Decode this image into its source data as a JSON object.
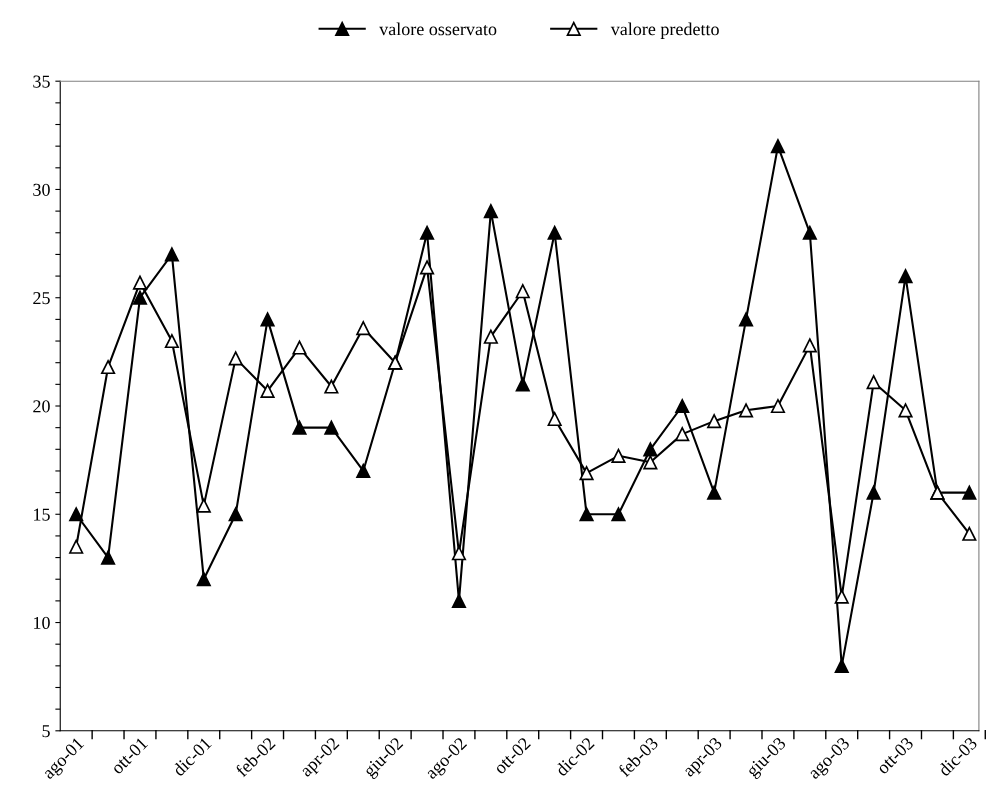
{
  "chart_data": {
    "type": "line",
    "categories": [
      "ago-01",
      null,
      "ott-01",
      null,
      "dic-01",
      null,
      "feb-02",
      null,
      "apr-02",
      null,
      "giu-02",
      null,
      "ago-02",
      null,
      "ott-02",
      null,
      "dic-02",
      null,
      "feb-03",
      null,
      "apr-03",
      null,
      "giu-03",
      null,
      "ago-03",
      null,
      "ott-03",
      null,
      "dic-03"
    ],
    "series": [
      {
        "name": "valore osservato",
        "color": "#000000",
        "marker": "triangle",
        "values": [
          15,
          13,
          25,
          27,
          12,
          15,
          24,
          19,
          19,
          17,
          22,
          28,
          11,
          29,
          21,
          28,
          15,
          15,
          18,
          20,
          16,
          24,
          32,
          28,
          8,
          16,
          26,
          16,
          16
        ]
      },
      {
        "name": "valore predetto",
        "color": "#000000",
        "marker": "triangle",
        "values": [
          13.5,
          21.8,
          25.7,
          23,
          15.4,
          22.2,
          20.7,
          22.7,
          20.9,
          23.6,
          22,
          26.4,
          13.2,
          23.2,
          25.3,
          19.4,
          16.9,
          17.7,
          17.4,
          18.7,
          19.3,
          19.8,
          20,
          22.8,
          11.2,
          21.1,
          19.8,
          16,
          14.1
        ]
      }
    ],
    "ylim": [
      5,
      35
    ],
    "yticks": [
      5,
      {
        "value": 6,
        "label": null
      },
      {
        "value": 7,
        "label": null
      },
      {
        "value": 8,
        "label": null
      },
      {
        "value": 9,
        "label": null
      },
      10,
      {
        "value": 11,
        "label": null
      },
      {
        "value": 12,
        "label": null
      },
      {
        "value": 13,
        "label": null
      },
      {
        "value": 14,
        "label": null
      },
      15,
      {
        "value": 16,
        "label": null
      },
      {
        "value": 17,
        "label": null
      },
      {
        "value": 18,
        "label": null
      },
      {
        "value": 19,
        "label": null
      },
      20,
      {
        "value": 21,
        "label": null
      },
      {
        "value": 22,
        "label": null
      },
      {
        "value": 23,
        "label": null
      },
      {
        "value": 24,
        "label": null
      },
      25,
      {
        "value": 26,
        "label": null
      },
      {
        "value": 27,
        "label": null
      },
      {
        "value": 28,
        "label": null
      },
      {
        "value": 29,
        "label": null
      },
      30,
      {
        "value": 31,
        "label": null
      },
      {
        "value": 32,
        "label": null
      },
      {
        "value": 33,
        "label": null
      },
      {
        "value": 34,
        "label": null
      },
      35
    ],
    "grid": false,
    "legend": "top",
    "line_style": "solid"
  }
}
